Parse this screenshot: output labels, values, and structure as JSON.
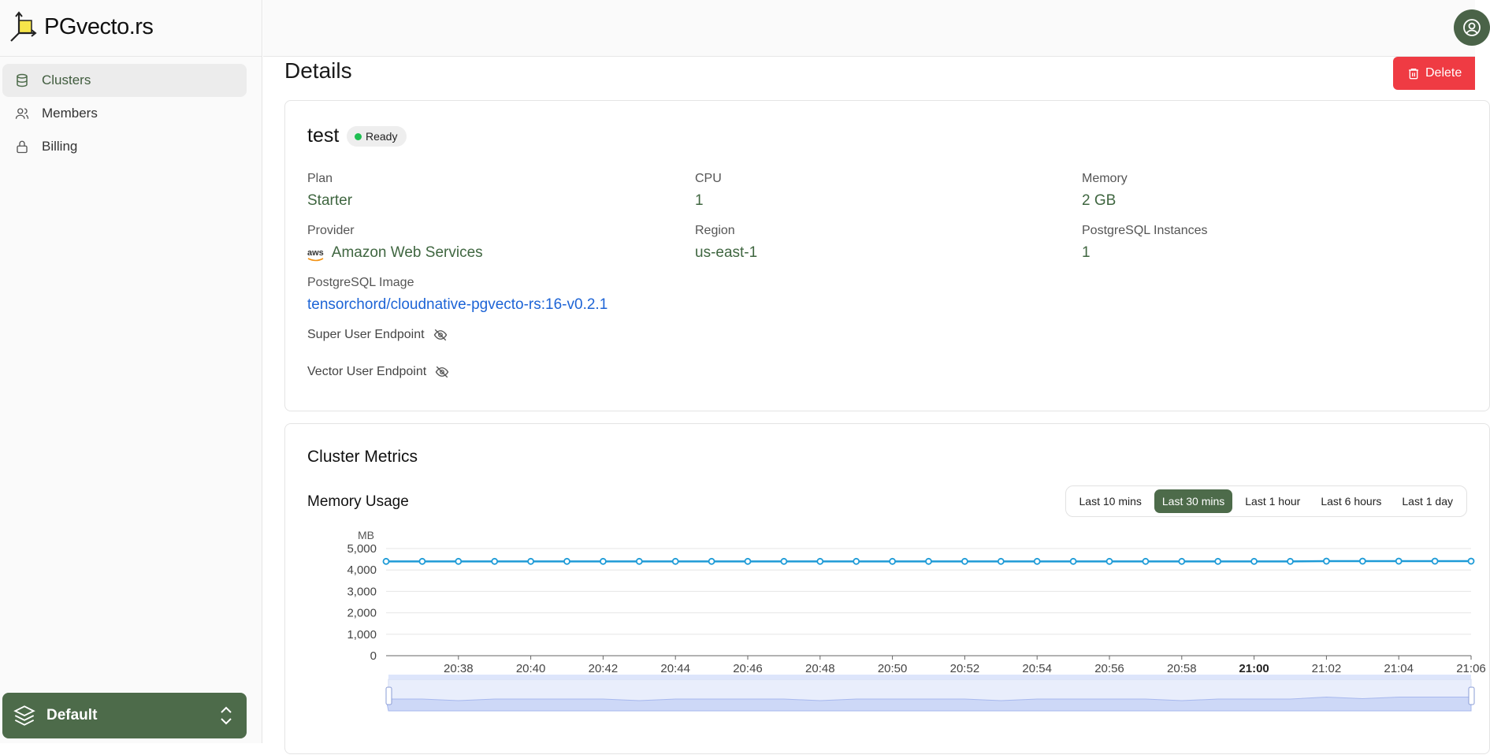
{
  "app": {
    "name": "PGvecto.rs"
  },
  "sidebar": {
    "items": [
      {
        "label": "Clusters",
        "icon": "database-icon",
        "active": true
      },
      {
        "label": "Members",
        "icon": "users-icon",
        "active": false
      },
      {
        "label": "Billing",
        "icon": "lock-icon",
        "active": false
      }
    ],
    "org": {
      "label": "Default",
      "icon": "layers-icon"
    }
  },
  "header": {
    "title": "Details",
    "delete_label": "Delete"
  },
  "cluster": {
    "name": "test",
    "status": "Ready",
    "fields": {
      "plan_label": "Plan",
      "plan_value": "Starter",
      "cpu_label": "CPU",
      "cpu_value": "1",
      "memory_label": "Memory",
      "memory_value": "2 GB",
      "provider_label": "Provider",
      "provider_value": "Amazon Web Services",
      "provider_logo_text": "aws",
      "region_label": "Region",
      "region_value": "us-east-1",
      "instances_label": "PostgreSQL Instances",
      "instances_value": "1",
      "image_label": "PostgreSQL Image",
      "image_value": "tensorchord/cloudnative-pgvecto-rs:16-v0.2.1"
    },
    "super_user_endpoint_label": "Super User Endpoint",
    "vector_user_endpoint_label": "Vector User Endpoint"
  },
  "metrics": {
    "title": "Cluster Metrics",
    "memory_title": "Memory Usage",
    "ranges": [
      "Last 10 mins",
      "Last 30 mins",
      "Last 1 hour",
      "Last 6 hours",
      "Last 1 day"
    ],
    "active_range": "Last 30 mins"
  },
  "colors": {
    "accent": "#4d6b4a",
    "danger": "#ef3b43",
    "line": "#1e9bd7",
    "link": "#1d64d6"
  },
  "chart_data": {
    "type": "line",
    "ylabel": "MB",
    "ylim": [
      0,
      5000
    ],
    "yticks": [
      "5,000",
      "4,000",
      "3,000",
      "2,000",
      "1,000",
      "0"
    ],
    "xticks": [
      "20:38",
      "20:40",
      "20:42",
      "20:44",
      "20:46",
      "20:48",
      "20:50",
      "20:52",
      "20:54",
      "20:56",
      "20:58",
      "21:00",
      "21:02",
      "21:04",
      "21:06"
    ],
    "bold_xtick": "21:00",
    "x": [
      "20:36",
      "20:37",
      "20:38",
      "20:39",
      "20:40",
      "20:41",
      "20:42",
      "20:43",
      "20:44",
      "20:45",
      "20:46",
      "20:47",
      "20:48",
      "20:49",
      "20:50",
      "20:51",
      "20:52",
      "20:53",
      "20:54",
      "20:55",
      "20:56",
      "20:57",
      "20:58",
      "20:59",
      "21:00",
      "21:01",
      "21:02",
      "21:03",
      "21:04",
      "21:05",
      "21:06"
    ],
    "series": [
      {
        "values": [
          4400,
          4400,
          4400,
          4400,
          4400,
          4400,
          4400,
          4400,
          4400,
          4400,
          4400,
          4400,
          4400,
          4400,
          4400,
          4400,
          4400,
          4400,
          4400,
          4400,
          4400,
          4400,
          4400,
          4400,
          4400,
          4400,
          4410,
          4410,
          4410,
          4410,
          4410
        ]
      }
    ]
  }
}
